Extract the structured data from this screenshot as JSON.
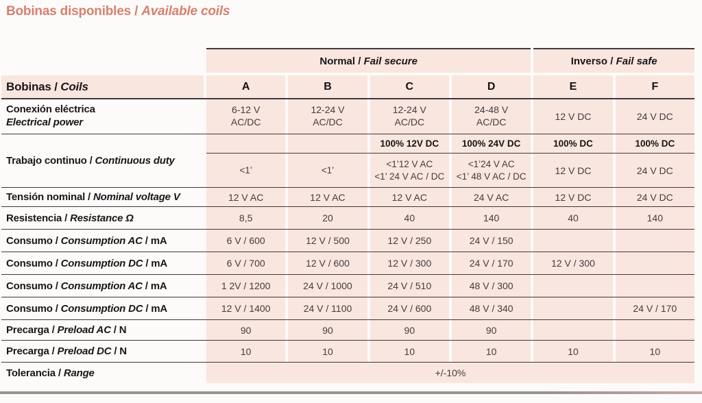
{
  "sep": " / ",
  "title": {
    "es": "Bobinas disponibles",
    "en": "Available coils"
  },
  "colors": {
    "accent": "#d5806f",
    "cell": "#f8e6df",
    "line": "#40373a",
    "label_ink": "#1c1517",
    "value_ink": "#433b3d",
    "bar_left": "#9a9093",
    "bar_right": "#c5a7a5"
  },
  "header": {
    "corner": {
      "es": "Bobinas",
      "en": "Coils"
    },
    "groups": {
      "normal": {
        "es": "Normal",
        "en": "Fail secure"
      },
      "inverso": {
        "es": "Inverso",
        "en": "Fail safe"
      }
    },
    "cols": [
      "A",
      "B",
      "C",
      "D",
      "E",
      "F"
    ]
  },
  "rows": {
    "conexion": {
      "es": "Conexión eléctrica",
      "en": "Electrical power",
      "cells": [
        "6-12 V\nAC/DC",
        "12-24 V\nAC/DC",
        "12-24 V\nAC/DC",
        "24-48 V\nAC/DC",
        "12 V DC",
        "24 V DC"
      ]
    },
    "trabajo": {
      "es": "Trabajo continuo",
      "en": "Continuous duty",
      "sub1": [
        "",
        "",
        "100% 12V DC",
        "100% 24V DC",
        "100% DC",
        "100% DC"
      ],
      "sub2": [
        "<1’",
        "<1’",
        "<1’12 V AC\n<1’ 24 V AC / DC",
        "<1’24 V AC\n<1’ 48 V AC / DC",
        "12 V DC",
        "24 V DC"
      ]
    },
    "tension": {
      "es": "Tensión nominal",
      "en": "Nominal voltage V",
      "cells": [
        "12 V AC",
        "12 V AC",
        "12 V AC",
        "24 V AC",
        "12 V DC",
        "24 V DC"
      ]
    },
    "resistencia": {
      "es": "Resistencia",
      "en": "Resistance Ω",
      "cells": [
        "8,5",
        "20",
        "40",
        "140",
        "40",
        "140"
      ]
    },
    "consumo_ac1": {
      "es": "Consumo",
      "en": "Consumption AC",
      "unit": "mA",
      "cells": [
        "6 V / 600",
        "12 V / 500",
        "12 V / 250",
        "24 V / 150",
        "",
        ""
      ]
    },
    "consumo_dc1": {
      "es": "Consumo",
      "en": "Consumption DC",
      "unit": "mA",
      "cells": [
        "6 V / 700",
        "12 V / 600",
        "12 V / 300",
        "24 V / 170",
        "12 V / 300",
        ""
      ]
    },
    "consumo_ac2": {
      "es": "Consumo",
      "en": "Consumption AC",
      "unit": "mA",
      "cells": [
        "1 2V / 1200",
        "24 V / 1000",
        "24 V / 510",
        "48 V / 300",
        "",
        ""
      ]
    },
    "consumo_dc2": {
      "es": "Consumo",
      "en": "Consumption DC",
      "unit": "mA",
      "cells": [
        "12 V / 1400",
        "24 V / 1100",
        "24 V / 600",
        "48 V / 340",
        "",
        "24 V / 170"
      ]
    },
    "precarga_ac": {
      "es": "Precarga",
      "en": "Preload AC",
      "unit": "N",
      "cells": [
        "90",
        "90",
        "90",
        "90",
        "",
        ""
      ]
    },
    "precarga_dc": {
      "es": "Precarga",
      "en": "Preload DC",
      "unit": "N",
      "cells": [
        "10",
        "10",
        "10",
        "10",
        "10",
        "10"
      ]
    },
    "tolerancia": {
      "es": "Tolerancia",
      "en": "Range",
      "value": "+/-10%"
    }
  }
}
